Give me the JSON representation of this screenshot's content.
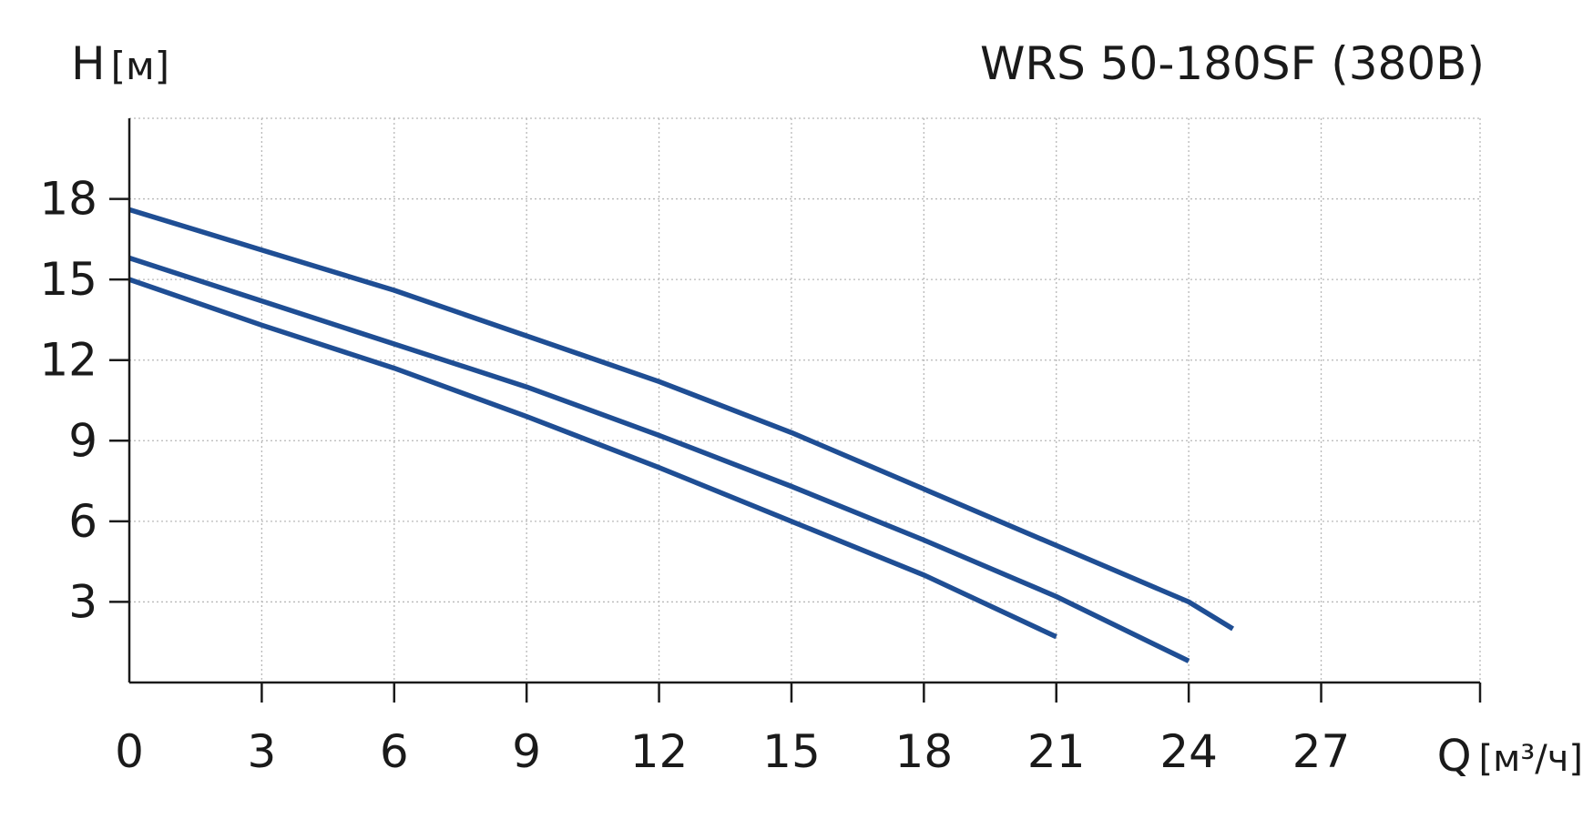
{
  "chart_data": {
    "type": "line",
    "title": "WRS 50-180SF (380B)",
    "xlabel": {
      "symbol": "Q",
      "unit": "[м³/ч]"
    },
    "ylabel": {
      "symbol": "H",
      "unit": "[м]"
    },
    "xlim": [
      0,
      30.6
    ],
    "ylim": [
      0,
      21
    ],
    "xticks": [
      0,
      3,
      6,
      9,
      12,
      15,
      18,
      21,
      24,
      27
    ],
    "yticks": [
      3,
      6,
      9,
      12,
      15,
      18
    ],
    "grid": true,
    "line_color": "#1f4e94",
    "series": [
      {
        "points": [
          [
            0,
            17.6
          ],
          [
            3,
            16.1
          ],
          [
            6,
            14.6
          ],
          [
            9,
            12.9
          ],
          [
            12,
            11.2
          ],
          [
            15,
            9.3
          ],
          [
            18,
            7.2
          ],
          [
            21,
            5.1
          ],
          [
            24,
            3.0
          ],
          [
            25,
            2.0
          ]
        ]
      },
      {
        "points": [
          [
            0,
            15.8
          ],
          [
            3,
            14.2
          ],
          [
            6,
            12.6
          ],
          [
            9,
            11.0
          ],
          [
            12,
            9.2
          ],
          [
            15,
            7.3
          ],
          [
            18,
            5.3
          ],
          [
            21,
            3.2
          ],
          [
            24,
            0.8
          ]
        ]
      },
      {
        "points": [
          [
            0,
            15.0
          ],
          [
            3,
            13.3
          ],
          [
            6,
            11.7
          ],
          [
            9,
            9.9
          ],
          [
            12,
            8.0
          ],
          [
            15,
            6.0
          ],
          [
            18,
            4.0
          ],
          [
            21,
            1.7
          ]
        ]
      }
    ]
  }
}
